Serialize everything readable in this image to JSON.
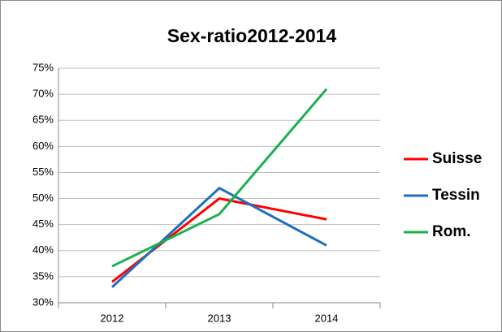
{
  "chart_data": {
    "type": "line",
    "title": "Sex-ratio2012-2014",
    "categories": [
      "2012",
      "2013",
      "2014"
    ],
    "series": [
      {
        "name": "Suisse",
        "color": "#ff0000",
        "values": [
          34,
          50,
          46
        ]
      },
      {
        "name": "Tessin",
        "color": "#1f6fc0",
        "values": [
          33,
          52,
          41
        ]
      },
      {
        "name": "Rom.",
        "color": "#1ab04f",
        "values": [
          37,
          47,
          71
        ]
      }
    ],
    "ylim": [
      30,
      75
    ],
    "yticks": [
      {
        "value": 30,
        "label": "30%"
      },
      {
        "value": 35,
        "label": "35%"
      },
      {
        "value": 40,
        "label": "40%"
      },
      {
        "value": 45,
        "label": "45%"
      },
      {
        "value": 50,
        "label": "50%"
      },
      {
        "value": 55,
        "label": "55%"
      },
      {
        "value": 60,
        "label": "60%"
      },
      {
        "value": 65,
        "label": "65%"
      },
      {
        "value": 70,
        "label": "70%"
      },
      {
        "value": 75,
        "label": "75%"
      }
    ],
    "grid": true,
    "legend": "right"
  }
}
